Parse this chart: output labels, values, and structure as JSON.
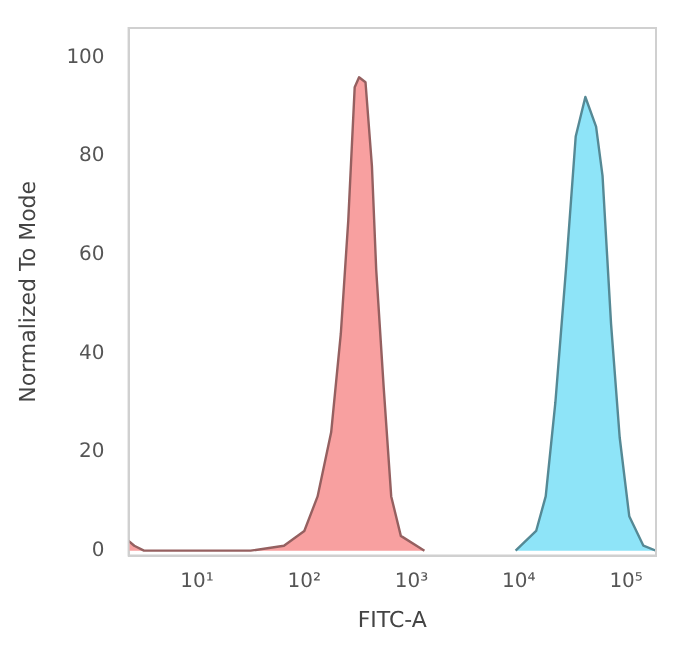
{
  "chart_data": {
    "type": "area",
    "xlabel": "FITC-A",
    "ylabel": "Normalized To Mode",
    "log": "x",
    "grid": false,
    "xlim": [
      2.3,
      190000
    ],
    "xticks": [
      {
        "value": 10,
        "label": "10¹"
      },
      {
        "value": 100,
        "label": "10²"
      },
      {
        "value": 1000,
        "label": "10³"
      },
      {
        "value": 10000,
        "label": "10⁴"
      },
      {
        "value": 100000,
        "label": "10⁵"
      }
    ],
    "ylim": [
      -1,
      106
    ],
    "yticks": [
      0,
      20,
      40,
      60,
      80,
      100
    ],
    "series": [
      {
        "color": "#f8a0a0",
        "x": [
          2.3,
          2.6,
          3.2,
          31.6,
          64.6,
          100,
          133,
          178,
          219,
          257,
          295,
          324,
          372,
          427,
          468,
          550,
          646,
          794,
          1318
        ],
        "values": [
          2,
          1,
          0,
          0,
          1,
          4,
          11,
          24,
          44,
          67,
          94,
          96,
          95,
          78,
          57,
          33,
          11,
          3,
          0
        ]
      },
      {
        "color": "#8ee4f8",
        "x": [
          9330,
          14500,
          17800,
          21900,
          27500,
          33900,
          41700,
          52500,
          60300,
          72400,
          87100,
          107000,
          145000,
          190000
        ],
        "values": [
          0,
          4,
          11,
          30,
          57,
          84,
          92,
          86,
          76,
          46,
          23,
          7,
          1,
          0
        ]
      }
    ]
  }
}
